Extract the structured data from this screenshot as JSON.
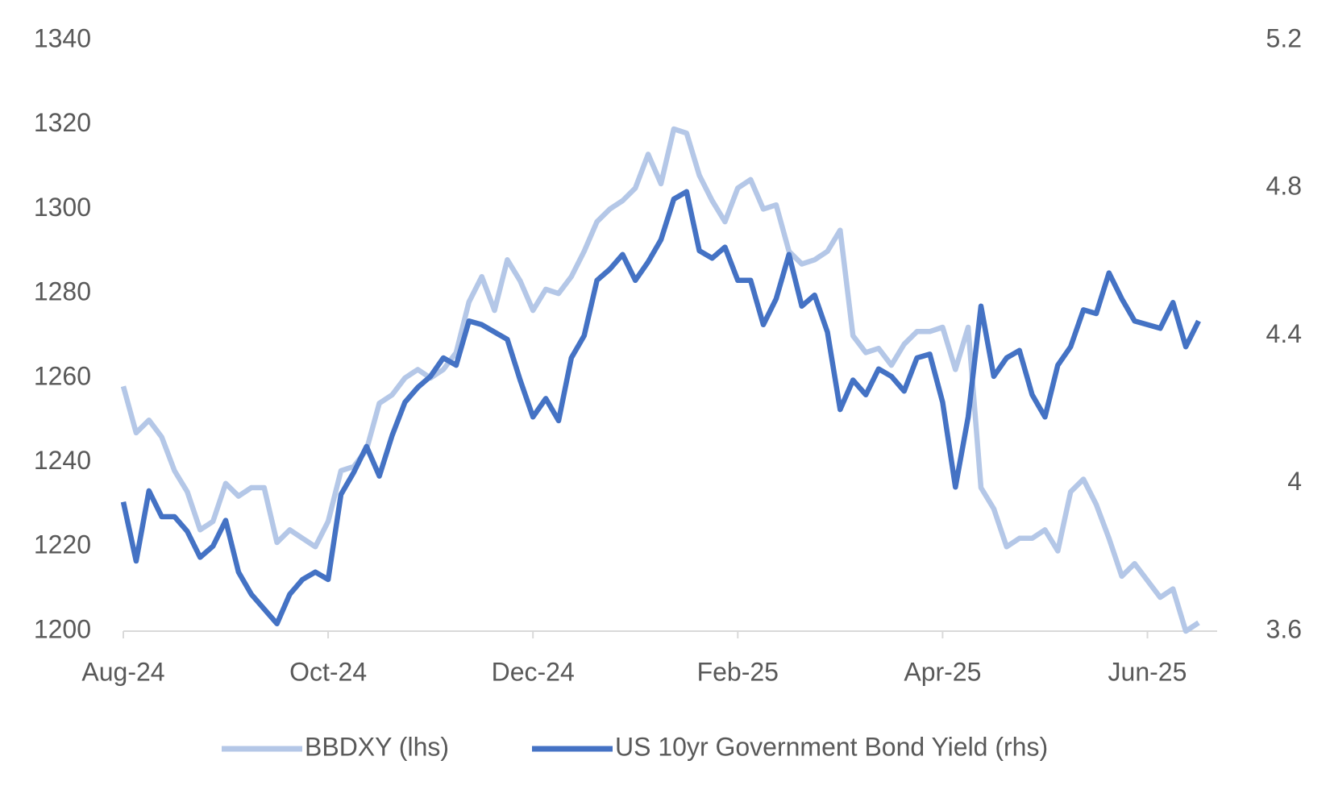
{
  "chart_data": {
    "type": "line",
    "categories": [
      "Aug-24",
      null,
      null,
      null,
      null,
      null,
      null,
      null,
      null,
      null,
      null,
      null,
      null,
      null,
      null,
      null,
      "Oct-24",
      null,
      null,
      null,
      null,
      null,
      null,
      null,
      null,
      null,
      null,
      null,
      null,
      null,
      null,
      null,
      "Dec-24",
      null,
      null,
      null,
      null,
      null,
      null,
      null,
      null,
      null,
      null,
      null,
      null,
      null,
      null,
      null,
      "Feb-25",
      null,
      null,
      null,
      null,
      null,
      null,
      null,
      null,
      null,
      null,
      null,
      null,
      null,
      null,
      null,
      "Apr-25",
      null,
      null,
      null,
      null,
      null,
      null,
      null,
      null,
      null,
      null,
      null,
      null,
      null,
      null,
      null,
      "Jun-25",
      null,
      null,
      null,
      null
    ],
    "series": [
      {
        "name": "BBDXY (lhs)",
        "color": "#b4c7e7",
        "axis": "y",
        "values": [
          1258,
          1247,
          1250,
          1246,
          1238,
          1233,
          1224,
          1226,
          1235,
          1232,
          1234,
          1234,
          1221,
          1224,
          1222,
          1220,
          1226,
          1238,
          1239,
          1243,
          1254,
          1256,
          1260,
          1262,
          1260,
          1262,
          1266,
          1278,
          1284,
          1276,
          1288,
          1283,
          1276,
          1281,
          1280,
          1284,
          1290,
          1297,
          1300,
          1302,
          1305,
          1313,
          1306,
          1319,
          1318,
          1308,
          1302,
          1297,
          1305,
          1307,
          1300,
          1301,
          1290,
          1287,
          1288,
          1290,
          1295,
          1270,
          1266,
          1267,
          1263,
          1268,
          1271,
          1271,
          1272,
          1262,
          1272,
          1234,
          1229,
          1220,
          1222,
          1222,
          1224,
          1219,
          1233,
          1236,
          1230,
          1222,
          1213,
          1216,
          1212,
          1208,
          1210,
          1200,
          1202
        ]
      },
      {
        "name": "US 10yr Government Bond Yield (rhs)",
        "color": "#4472c4",
        "axis": "y2",
        "values": [
          3.95,
          3.79,
          3.98,
          3.91,
          3.91,
          3.87,
          3.8,
          3.83,
          3.9,
          3.76,
          3.7,
          3.66,
          3.62,
          3.7,
          3.74,
          3.76,
          3.74,
          3.97,
          4.03,
          4.1,
          4.02,
          4.13,
          4.22,
          4.26,
          4.29,
          4.34,
          4.32,
          4.44,
          4.43,
          4.41,
          4.39,
          4.28,
          4.18,
          4.23,
          4.17,
          4.34,
          4.4,
          4.55,
          4.58,
          4.62,
          4.55,
          4.6,
          4.66,
          4.77,
          4.79,
          4.63,
          4.61,
          4.64,
          4.55,
          4.55,
          4.43,
          4.5,
          4.62,
          4.48,
          4.51,
          4.41,
          4.2,
          4.28,
          4.24,
          4.31,
          4.29,
          4.25,
          4.34,
          4.35,
          4.22,
          3.99,
          4.18,
          4.48,
          4.29,
          4.34,
          4.36,
          4.24,
          4.18,
          4.32,
          4.37,
          4.47,
          4.46,
          4.57,
          4.5,
          4.44,
          4.43,
          4.42,
          4.49,
          4.37,
          4.44
        ]
      }
    ],
    "ylim": [
      1200,
      1340
    ],
    "yticks": [
      1200,
      1220,
      1240,
      1260,
      1280,
      1300,
      1320,
      1340
    ],
    "y2lim": [
      3.6,
      5.2
    ],
    "y2ticks": [
      3.6,
      4.0,
      4.4,
      4.8,
      5.2
    ],
    "grid": false,
    "legend": "bottom"
  }
}
